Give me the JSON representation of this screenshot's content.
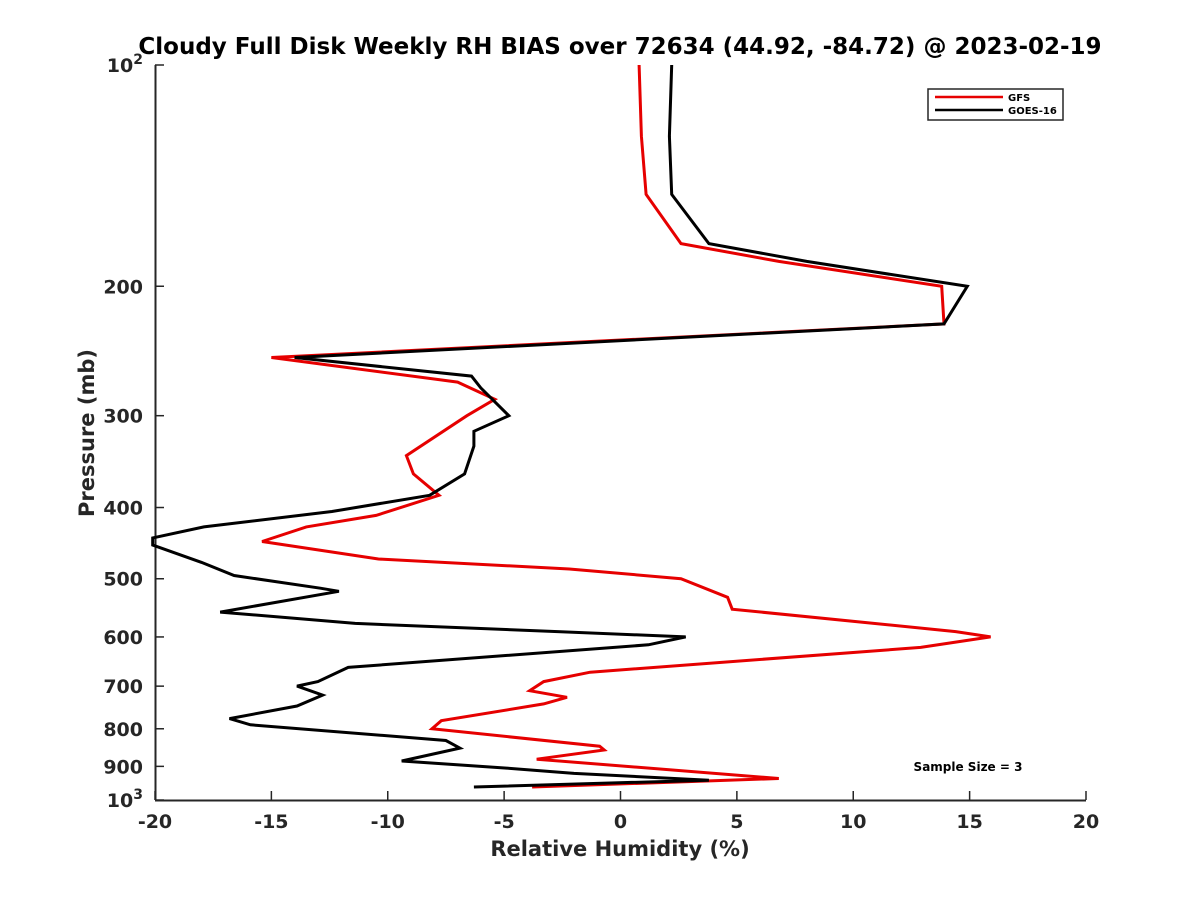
{
  "chart_data": {
    "type": "line",
    "title": "Cloudy Full Disk Weekly RH BIAS over 72634 (44.92, -84.72) @ 2023-02-19",
    "xlabel": "Relative Humidity (%)",
    "ylabel": "Pressure (mb)",
    "xlim": [
      -20,
      20
    ],
    "ylim": [
      100,
      1000
    ],
    "y_scale": "log",
    "y_reversed": true,
    "x_ticks": [
      "-20",
      "-15",
      "-10",
      "-5",
      "0",
      "5",
      "10",
      "15",
      "20"
    ],
    "y_ticks": [
      {
        "value": 100,
        "base": "10",
        "exp": "2"
      },
      {
        "value": 200,
        "label": "200"
      },
      {
        "value": 300,
        "label": "300"
      },
      {
        "value": 400,
        "label": "400"
      },
      {
        "value": 500,
        "label": "500"
      },
      {
        "value": 600,
        "label": "600"
      },
      {
        "value": 700,
        "label": "700"
      },
      {
        "value": 800,
        "label": "800"
      },
      {
        "value": 900,
        "label": "900"
      },
      {
        "value": 1000,
        "base": "10",
        "exp": "3"
      }
    ],
    "legend_position": "top-right",
    "annotation": "Sample Size = 3",
    "series": [
      {
        "name": "GFS",
        "color": "#e60000",
        "points": [
          [
            0.8,
            100
          ],
          [
            0.9,
            125
          ],
          [
            1.1,
            150
          ],
          [
            2.6,
            175
          ],
          [
            6.8,
            185
          ],
          [
            13.8,
            200
          ],
          [
            13.9,
            225
          ],
          [
            -15.0,
            250
          ],
          [
            -7.0,
            270
          ],
          [
            -5.4,
            285
          ],
          [
            -6.6,
            300
          ],
          [
            -9.2,
            340
          ],
          [
            -8.9,
            360
          ],
          [
            -7.8,
            385
          ],
          [
            -10.5,
            410
          ],
          [
            -13.5,
            425
          ],
          [
            -15.4,
            445
          ],
          [
            -10.4,
            470
          ],
          [
            -2.2,
            485
          ],
          [
            2.6,
            500
          ],
          [
            4.6,
            530
          ],
          [
            4.8,
            550
          ],
          [
            14.4,
            590
          ],
          [
            15.9,
            600
          ],
          [
            12.9,
            620
          ],
          [
            -1.3,
            670
          ],
          [
            -3.3,
            690
          ],
          [
            -3.9,
            710
          ],
          [
            -2.3,
            725
          ],
          [
            -3.3,
            740
          ],
          [
            -7.7,
            780
          ],
          [
            -8.1,
            800
          ],
          [
            -0.9,
            845
          ],
          [
            -0.7,
            855
          ],
          [
            -3.6,
            880
          ],
          [
            6.8,
            935
          ],
          [
            -3.8,
            960
          ]
        ]
      },
      {
        "name": "GOES-16",
        "color": "#000000",
        "points": [
          [
            2.2,
            100
          ],
          [
            2.1,
            125
          ],
          [
            2.2,
            150
          ],
          [
            3.8,
            175
          ],
          [
            8.0,
            185
          ],
          [
            14.9,
            200
          ],
          [
            13.9,
            225
          ],
          [
            -14.0,
            250
          ],
          [
            -6.4,
            265
          ],
          [
            -6.0,
            275
          ],
          [
            -4.8,
            300
          ],
          [
            -6.3,
            315
          ],
          [
            -6.3,
            330
          ],
          [
            -6.7,
            360
          ],
          [
            -8.2,
            385
          ],
          [
            -12.4,
            405
          ],
          [
            -17.9,
            425
          ],
          [
            -20.1,
            440
          ],
          [
            -20.1,
            450
          ],
          [
            -18.0,
            475
          ],
          [
            -16.6,
            495
          ],
          [
            -12.9,
            515
          ],
          [
            -12.1,
            520
          ],
          [
            -17.2,
            555
          ],
          [
            -11.4,
            575
          ],
          [
            -2.7,
            590
          ],
          [
            2.8,
            600
          ],
          [
            1.2,
            615
          ],
          [
            -11.7,
            660
          ],
          [
            -13.0,
            690
          ],
          [
            -13.9,
            700
          ],
          [
            -12.8,
            720
          ],
          [
            -13.9,
            745
          ],
          [
            -16.8,
            775
          ],
          [
            -15.9,
            790
          ],
          [
            -7.5,
            830
          ],
          [
            -6.9,
            850
          ],
          [
            -9.4,
            885
          ],
          [
            -4.9,
            905
          ],
          [
            -2.0,
            920
          ],
          [
            3.8,
            940
          ],
          [
            -6.3,
            960
          ]
        ]
      }
    ]
  }
}
